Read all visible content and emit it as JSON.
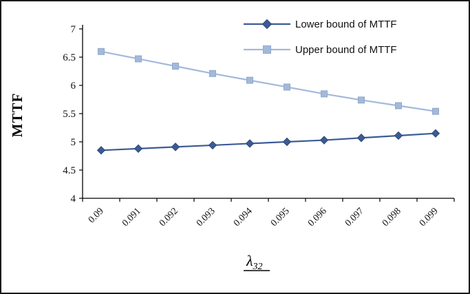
{
  "figure": {
    "background": "#ffffff",
    "border_color": "#1a1a1a"
  },
  "chart_data": {
    "type": "line",
    "title": "",
    "ylabel": "MTTF",
    "xlabel": "λ32",
    "xlabel_symbol": "λ",
    "xlabel_subscript": "32",
    "ylim": [
      4,
      7
    ],
    "ytick_step": 0.5,
    "yticks": [
      "4",
      "4.5",
      "5",
      "5.5",
      "6",
      "6.5",
      "7"
    ],
    "categories": [
      "0.09",
      "0.091",
      "0.092",
      "0.093",
      "0.094",
      "0.095",
      "0.096",
      "0.097",
      "0.098",
      "0.099"
    ],
    "grid": false,
    "legend_position": "top-right",
    "series": [
      {
        "name": "Lower bound of MTTF",
        "marker": "diamond",
        "color": "#3C5B96",
        "marker_edge": "#2E4875",
        "values": [
          4.85,
          4.88,
          4.91,
          4.94,
          4.97,
          5.0,
          5.03,
          5.07,
          5.11,
          5.15
        ]
      },
      {
        "name": "Upper bound of  MTTF",
        "marker": "square",
        "color": "#A3B9DA",
        "marker_edge": "#8FA8CC",
        "values": [
          6.6,
          6.47,
          6.34,
          6.21,
          6.09,
          5.97,
          5.85,
          5.74,
          5.64,
          5.54
        ]
      }
    ]
  }
}
